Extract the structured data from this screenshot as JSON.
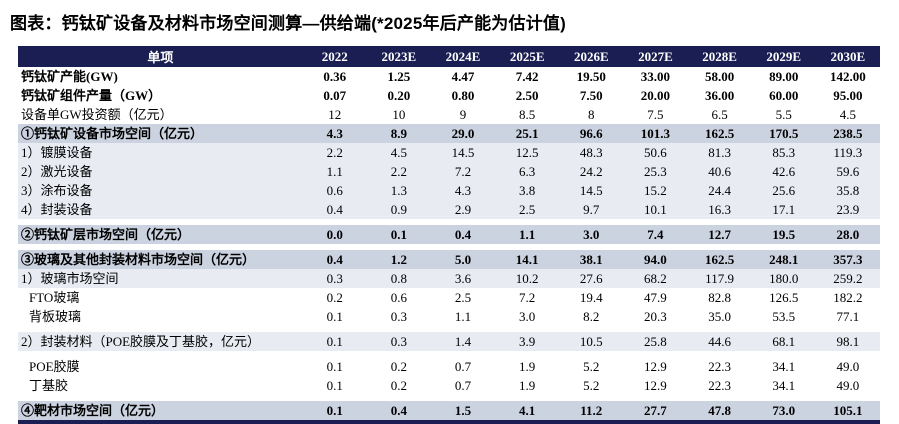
{
  "title": "图表：钙钛矿设备及材料市场空间测算—供给端(*2025年后产能为估计值)",
  "colors": {
    "header_bg": "#1a1e52",
    "header_text": "#ffffff",
    "section_row_bg": "#ccd3e0",
    "sub_row_bg": "#e8ebf2",
    "bottom_rule": "#1a1e52",
    "body_text": "#000000"
  },
  "table": {
    "header": [
      "单项",
      "2022",
      "2023E",
      "2024E",
      "2025E",
      "2026E",
      "2027E",
      "2028E",
      "2029E",
      "2030E"
    ],
    "rows": [
      {
        "label": "钙钛矿产能(GW)",
        "style": "bold",
        "gap_before": false,
        "values": [
          "0.36",
          "1.25",
          "4.47",
          "7.42",
          "19.50",
          "33.00",
          "58.00",
          "89.00",
          "142.00"
        ]
      },
      {
        "label": "钙钛矿组件产量（GW）",
        "style": "bold",
        "gap_before": false,
        "values": [
          "0.07",
          "0.20",
          "0.80",
          "2.50",
          "7.50",
          "20.00",
          "36.00",
          "60.00",
          "95.00"
        ]
      },
      {
        "label": "设备单GW投资额（亿元）",
        "style": "plain",
        "gap_before": false,
        "values": [
          "12",
          "10",
          "9",
          "8.5",
          "8",
          "7.5",
          "6.5",
          "5.5",
          "4.5"
        ]
      },
      {
        "label": "①钙钛矿设备市场空间（亿元）",
        "style": "section",
        "gap_before": false,
        "values": [
          "4.3",
          "8.9",
          "29.0",
          "25.1",
          "96.6",
          "101.3",
          "162.5",
          "170.5",
          "238.5"
        ]
      },
      {
        "label": "1）镀膜设备",
        "style": "sub",
        "gap_before": false,
        "values": [
          "2.2",
          "4.5",
          "14.5",
          "12.5",
          "48.3",
          "50.6",
          "81.3",
          "85.3",
          "119.3"
        ]
      },
      {
        "label": "2）激光设备",
        "style": "sub",
        "gap_before": false,
        "values": [
          "1.1",
          "2.2",
          "7.2",
          "6.3",
          "24.2",
          "25.3",
          "40.6",
          "42.6",
          "59.6"
        ]
      },
      {
        "label": "3）涂布设备",
        "style": "sub",
        "gap_before": false,
        "values": [
          "0.6",
          "1.3",
          "4.3",
          "3.8",
          "14.5",
          "15.2",
          "24.4",
          "25.6",
          "35.8"
        ]
      },
      {
        "label": "4）封装设备",
        "style": "sub",
        "gap_before": false,
        "values": [
          "0.4",
          "0.9",
          "2.9",
          "2.5",
          "9.7",
          "10.1",
          "16.3",
          "17.1",
          "23.9"
        ]
      },
      {
        "label": "②钙钛矿层市场空间（亿元）",
        "style": "section",
        "gap_before": true,
        "values": [
          "0.0",
          "0.1",
          "0.4",
          "1.1",
          "3.0",
          "7.4",
          "12.7",
          "19.5",
          "28.0"
        ]
      },
      {
        "label": "③玻璃及其他封装材料市场空间（亿元）",
        "style": "section",
        "gap_before": true,
        "values": [
          "0.4",
          "1.2",
          "5.0",
          "14.1",
          "38.1",
          "94.0",
          "162.5",
          "248.1",
          "357.3"
        ]
      },
      {
        "label": "1）玻璃市场空间",
        "style": "sub",
        "gap_before": false,
        "values": [
          "0.3",
          "0.8",
          "3.6",
          "10.2",
          "27.6",
          "68.2",
          "117.9",
          "180.0",
          "259.2"
        ]
      },
      {
        "label": "FTO玻璃",
        "style": "indent",
        "gap_before": false,
        "values": [
          "0.2",
          "0.6",
          "2.5",
          "7.2",
          "19.4",
          "47.9",
          "82.8",
          "126.5",
          "182.2"
        ]
      },
      {
        "label": "背板玻璃",
        "style": "indent",
        "gap_before": false,
        "values": [
          "0.1",
          "0.3",
          "1.1",
          "3.0",
          "8.2",
          "20.3",
          "35.0",
          "53.5",
          "77.1"
        ]
      },
      {
        "label": "2）封装材料（POE胶膜及丁基胶，亿元）",
        "style": "sub",
        "gap_before": true,
        "values": [
          "0.1",
          "0.3",
          "1.4",
          "3.9",
          "10.5",
          "25.8",
          "44.6",
          "68.1",
          "98.1"
        ]
      },
      {
        "label": "POE胶膜",
        "style": "indent",
        "gap_before": true,
        "values": [
          "0.1",
          "0.2",
          "0.7",
          "1.9",
          "5.2",
          "12.9",
          "22.3",
          "34.1",
          "49.0"
        ]
      },
      {
        "label": "丁基胶",
        "style": "indent",
        "gap_before": false,
        "values": [
          "0.1",
          "0.2",
          "0.7",
          "1.9",
          "5.2",
          "12.9",
          "22.3",
          "34.1",
          "49.0"
        ]
      },
      {
        "label": "④靶材市场空间（亿元）",
        "style": "section",
        "gap_before": true,
        "values": [
          "0.1",
          "0.4",
          "1.5",
          "4.1",
          "11.2",
          "27.7",
          "47.8",
          "73.0",
          "105.1"
        ]
      }
    ]
  }
}
